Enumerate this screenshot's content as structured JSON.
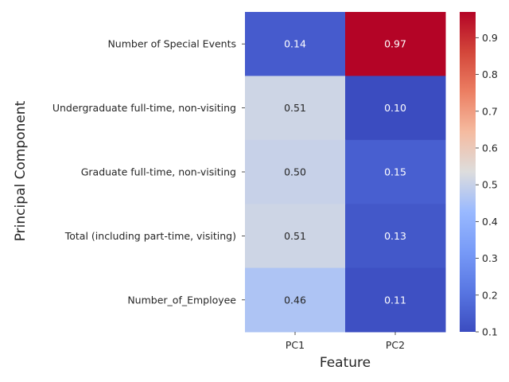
{
  "chart_data": {
    "type": "heatmap",
    "title": "",
    "xlabel": "Feature",
    "ylabel": "Principal Component",
    "columns": [
      "PC1",
      "PC2"
    ],
    "rows": [
      "Number of Special Events",
      "Undergraduate full-time, non-visiting",
      "Graduate full-time, non-visiting",
      "Total (including part-time, visiting)",
      "Number_of_Employee"
    ],
    "values": [
      [
        0.14,
        0.97
      ],
      [
        0.51,
        0.1
      ],
      [
        0.5,
        0.15
      ],
      [
        0.51,
        0.13
      ],
      [
        0.46,
        0.11
      ]
    ],
    "value_format": "0.00",
    "colormap": "coolwarm",
    "colorbar": {
      "range": [
        0.1,
        0.97
      ],
      "ticks": [
        0.1,
        0.2,
        0.3,
        0.4,
        0.5,
        0.6,
        0.7,
        0.8,
        0.9
      ],
      "tick_labels": [
        "0.1",
        "0.2",
        "0.3",
        "0.4",
        "0.5",
        "0.6",
        "0.7",
        "0.8",
        "0.9"
      ]
    },
    "grid": false,
    "legend": "colorbar-right"
  }
}
